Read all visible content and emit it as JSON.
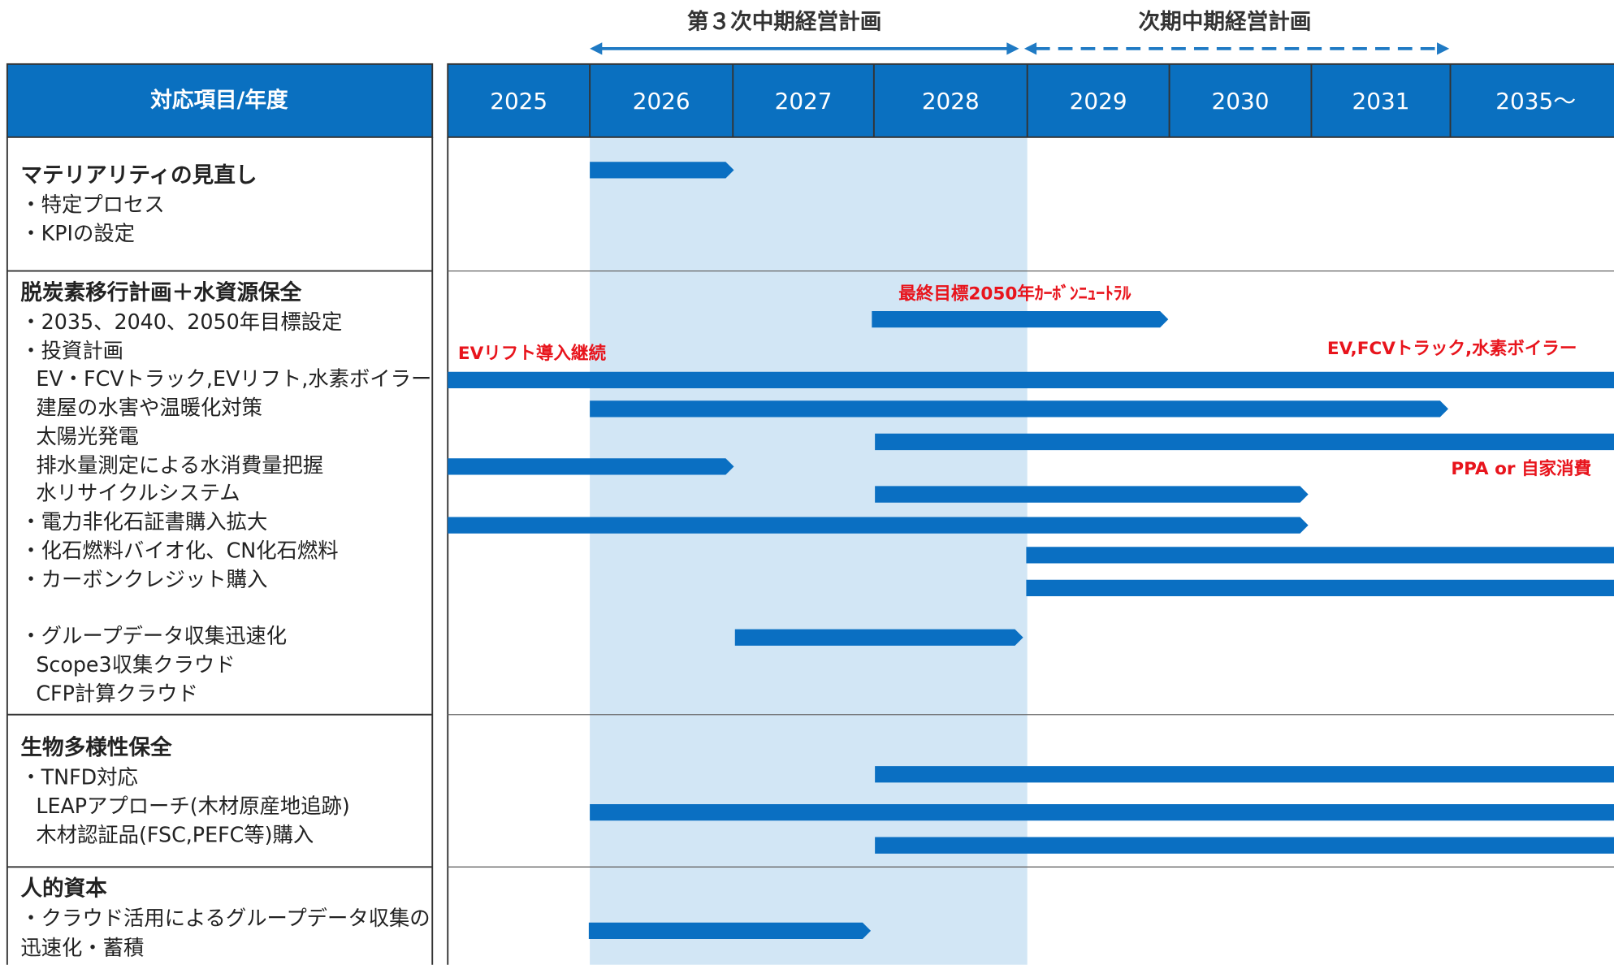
{
  "header": {
    "plans": [
      "第３次中期経営計画",
      "次期中期経営計画"
    ],
    "column_title": "対応項目/年度",
    "years": [
      "2025",
      "2026",
      "2027",
      "2028",
      "2029",
      "2030",
      "2031",
      "2035～"
    ]
  },
  "rows": [
    {
      "heading": "マテリアリティの見直し",
      "items": [
        "・特定プロセス",
        "・KPIの設定"
      ]
    },
    {
      "heading": "脱炭素移行計画＋水資源保全",
      "items": [
        "・2035、2040、2050年目標設定",
        "・投資計画",
        "EV・FCVトラック,EVリフト,水素ボイラー",
        "建屋の水害や温暖化対策",
        "太陽光発電",
        "排水量測定による水消費量把握",
        "水リサイクルシステム",
        "・電力非化石証書購入拡大",
        "・化石燃料バイオ化、CN化石燃料",
        "・カーボンクレジット購入",
        "・グループデータ収集迅速化",
        "Scope3収集クラウド",
        "CFP計算クラウド"
      ]
    },
    {
      "heading": "生物多様性保全",
      "items": [
        "・TNFD対応",
        "LEAPアプローチ(木材原産地追跡)",
        "木材認証品(FSC,PEFC等)購入"
      ]
    },
    {
      "heading": "人的資本",
      "items": [
        "・クラウド活用によるグループデータ収集の",
        "迅速化・蓄積"
      ]
    }
  ],
  "annotations": [
    "最終目標2050年ｶｰﾎﾞﾝﾆｭｰﾄﾗﾙ",
    "EVリフト導入継続",
    "EV,FCVトラック,水素ボイラー",
    "PPA or 自家消費"
  ]
}
